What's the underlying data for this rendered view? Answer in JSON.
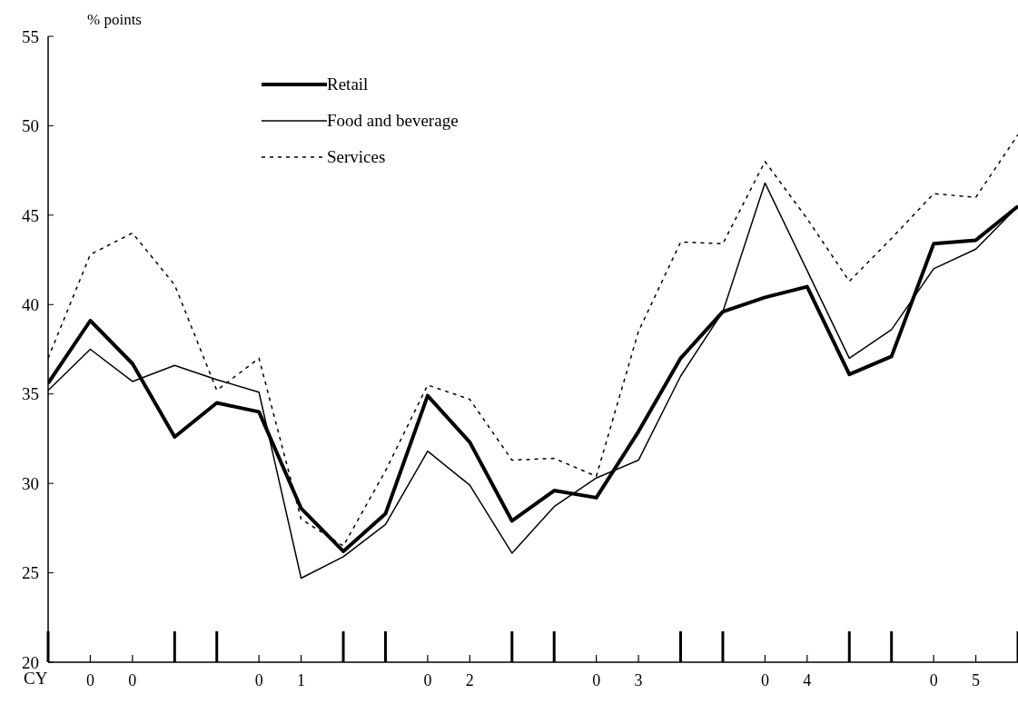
{
  "chart_data": {
    "type": "line",
    "ylabel": "% points",
    "xlabel": "CY",
    "categories": [
      null,
      "0",
      "0",
      null,
      null,
      "0",
      "1",
      null,
      null,
      "0",
      "2",
      null,
      null,
      "0",
      "3",
      null,
      null,
      "0",
      "4",
      null,
      null,
      "0",
      "5",
      null
    ],
    "series": [
      {
        "name": "Retail",
        "color": "#000000",
        "line_style": "solid",
        "values": [
          35.6,
          39.1,
          36.7,
          32.6,
          34.5,
          34.0,
          28.6,
          26.2,
          28.3,
          34.9,
          32.3,
          27.9,
          29.6,
          29.2,
          32.9,
          37.0,
          39.6,
          40.4,
          41.0,
          36.1,
          37.1,
          43.4,
          43.6,
          45.5
        ]
      },
      {
        "name": "Food and beverage",
        "color": "#000000",
        "line_style": "solid",
        "values": [
          35.2,
          37.5,
          35.7,
          36.6,
          35.8,
          35.1,
          24.7,
          25.9,
          27.7,
          31.8,
          29.9,
          26.1,
          28.7,
          30.3,
          31.3,
          36.0,
          39.6,
          46.8,
          41.9,
          37.0,
          38.6,
          42.0,
          43.1,
          45.5
        ]
      },
      {
        "name": "Services",
        "color": "#000000",
        "line_style": "dotted",
        "values": [
          37.0,
          42.8,
          44.0,
          41.1,
          35.2,
          37.0,
          28.0,
          26.5,
          30.7,
          35.5,
          34.7,
          31.3,
          31.4,
          30.4,
          38.5,
          43.5,
          43.4,
          48.0,
          44.8,
          41.3,
          43.7,
          46.2,
          46.0,
          49.5
        ]
      }
    ],
    "ylim": [
      20,
      55
    ],
    "yticks": [
      20,
      25,
      30,
      35,
      40,
      45,
      50,
      55
    ],
    "grid": false,
    "legend": "top left",
    "marker": "none"
  }
}
